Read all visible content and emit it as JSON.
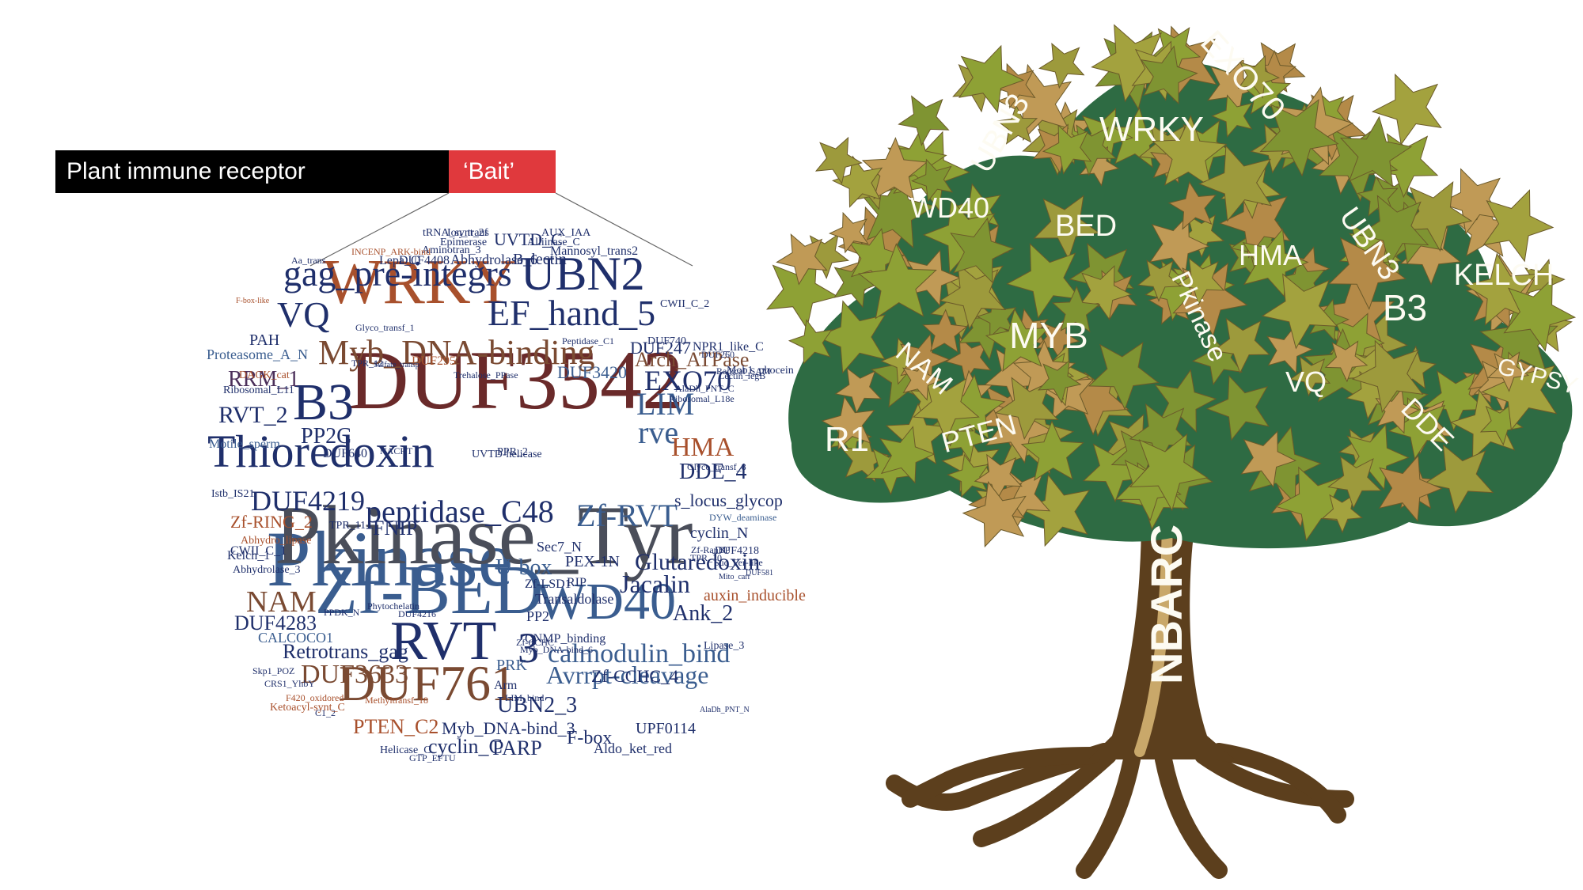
{
  "header": {
    "receptor_label": "Plant immune receptor",
    "bait_label": "‘Bait’",
    "receptor_color": "#000000",
    "bait_color": "#e0393d"
  },
  "word_cloud": {
    "colors": {
      "navy": "#1f2f6b",
      "blue": "#3a5d8f",
      "brown": "#7a4a32",
      "orange": "#a8502c",
      "slate": "#4a4e5a",
      "purple": "#4b2f5a"
    },
    "words": [
      {
        "text": "Pkinase",
        "color": "#3a5d8f"
      },
      {
        "text": "Pkinase_Tyr",
        "color": "#4a4e5a"
      },
      {
        "text": "DUF3542",
        "color": "#6a2a2a"
      },
      {
        "text": "WRKY",
        "color": "#a8502c"
      },
      {
        "text": "Zf-BED",
        "color": "#3a5d8f"
      },
      {
        "text": "Thioredoxin",
        "color": "#1f2f6b"
      },
      {
        "text": "DUF761",
        "color": "#7a4a32"
      },
      {
        "text": "UBN2",
        "color": "#1f2f6b"
      },
      {
        "text": "WD40",
        "color": "#3a5d8f"
      },
      {
        "text": "RVT",
        "color": "#1f2f6b"
      },
      {
        "text": "gag_pre-integrs",
        "color": "#1f2f6b"
      },
      {
        "text": "Myb_DNA-binding",
        "color": "#7a4a32"
      },
      {
        "text": "EF_hand_5",
        "color": "#1f2f6b"
      },
      {
        "text": "VQ",
        "color": "#1f2f6b"
      },
      {
        "text": "B3",
        "color": "#1f2f6b"
      },
      {
        "text": "peptidase_C48",
        "color": "#1f2f6b"
      },
      {
        "text": "Zf-RVT",
        "color": "#3a5d8f"
      },
      {
        "text": "rve",
        "color": "#3a5d8f"
      },
      {
        "text": "LIM",
        "color": "#3a5d8f"
      },
      {
        "text": "EXO70",
        "color": "#1f2f6b"
      },
      {
        "text": "HMA",
        "color": "#a8502c"
      },
      {
        "text": "DDE_4",
        "color": "#1f2f6b"
      },
      {
        "text": "calmodulin_bind",
        "color": "#3a5d8f"
      },
      {
        "text": "Avrrpt-cleavage",
        "color": "#3a5d8f"
      },
      {
        "text": "Glutaredoxin",
        "color": "#1f2f6b"
      },
      {
        "text": "Jacalin",
        "color": "#1f2f6b"
      },
      {
        "text": "NAM",
        "color": "#7a4a32"
      },
      {
        "text": "Ank_2",
        "color": "#1f2f6b"
      },
      {
        "text": "RRM_1",
        "color": "#4b2f5a"
      },
      {
        "text": "RVT_2",
        "color": "#1f2f6b"
      },
      {
        "text": "DUF4219",
        "color": "#1f2f6b"
      },
      {
        "text": "3",
        "color": "#1f2f6b"
      },
      {
        "text": "UBN2_3",
        "color": "#1f2f6b"
      },
      {
        "text": "Zf-CCHC_4",
        "color": "#1f2f6b"
      },
      {
        "text": "DUF3633",
        "color": "#7a4a32"
      },
      {
        "text": "DUF4283",
        "color": "#1f2f6b"
      },
      {
        "text": "Retrotrans_gag",
        "color": "#1f2f6b"
      },
      {
        "text": "PTEN_C2",
        "color": "#a8502c"
      },
      {
        "text": "Myb_DNA-bind_3",
        "color": "#1f2f6b"
      },
      {
        "text": "F-box",
        "color": "#1f2f6b"
      },
      {
        "text": "cyclin_C",
        "color": "#1f2f6b"
      },
      {
        "text": "PARP",
        "color": "#1f2f6b"
      },
      {
        "text": "U-box",
        "color": "#3a5d8f"
      },
      {
        "text": "FNIP",
        "color": "#1f2f6b"
      },
      {
        "text": "PP2C",
        "color": "#1f2f6b"
      },
      {
        "text": "DUF247",
        "color": "#1f2f6b"
      },
      {
        "text": "Arch_ATPase",
        "color": "#7a4a32"
      },
      {
        "text": "s_locus_glycop",
        "color": "#1f2f6b"
      },
      {
        "text": "Zf-RING_2",
        "color": "#a8502c"
      },
      {
        "text": "Kelch_1",
        "color": "#1f2f6b"
      },
      {
        "text": "cyclin_N",
        "color": "#1f2f6b"
      },
      {
        "text": "Abhydrolase_6",
        "color": "#1f2f6b"
      },
      {
        "text": "B_lectin",
        "color": "#1f2f6b"
      },
      {
        "text": "UVTD_C",
        "color": "#1f2f6b"
      },
      {
        "text": "PAH",
        "color": "#1f2f6b"
      },
      {
        "text": "Proteasome_A_N",
        "color": "#3a5d8f"
      },
      {
        "text": "Motile_sperm",
        "color": "#3a5d8f"
      },
      {
        "text": "DUF640",
        "color": "#1f2f6b"
      },
      {
        "text": "PRK",
        "color": "#3a5d8f"
      },
      {
        "text": "Arm",
        "color": "#1f2f6b"
      },
      {
        "text": "PP2",
        "color": "#1f2f6b"
      },
      {
        "text": "Transaldolase",
        "color": "#1f2f6b"
      },
      {
        "text": "UPF0114",
        "color": "#1f2f6b"
      },
      {
        "text": "Aldo_ket_red",
        "color": "#1f2f6b"
      },
      {
        "text": "CALCOCO1",
        "color": "#3a5d8f"
      },
      {
        "text": "DUF3420",
        "color": "#3a5d8f"
      },
      {
        "text": "Trehalose_PPase",
        "color": "#1f2f6b"
      },
      {
        "text": "DUF295",
        "color": "#a8502c"
      },
      {
        "text": "DAGK_cat",
        "color": "#a8502c"
      },
      {
        "text": "Mob1_phocein",
        "color": "#1f2f6b"
      },
      {
        "text": "NPR1_like_C",
        "color": "#1f2f6b"
      },
      {
        "text": "Lipase_3",
        "color": "#1f2f6b"
      },
      {
        "text": "auxin_inducible",
        "color": "#a8502c"
      },
      {
        "text": "DUF4218",
        "color": "#1f2f6b"
      },
      {
        "text": "Abhydro_lipase",
        "color": "#a8502c"
      },
      {
        "text": "CWII_C_1",
        "color": "#1f2f6b"
      },
      {
        "text": "TPR_11",
        "color": "#1f2f6b"
      },
      {
        "text": "TPR_12",
        "color": "#1f2f6b"
      },
      {
        "text": "PPR_2",
        "color": "#1f2f6b"
      },
      {
        "text": "UVTD-helicase",
        "color": "#1f2f6b"
      },
      {
        "text": "Aa_trans",
        "color": "#1f2f6b"
      },
      {
        "text": "DUF4408",
        "color": "#1f2f6b"
      },
      {
        "text": "Lepa_C",
        "color": "#1f2f6b"
      },
      {
        "text": "Ion_trans",
        "color": "#1f2f6b"
      },
      {
        "text": "AUX_IAA",
        "color": "#1f2f6b"
      },
      {
        "text": "Alliinase_C",
        "color": "#1f2f6b"
      },
      {
        "text": "Mannosyl_trans2",
        "color": "#1f2f6b"
      },
      {
        "text": "CWII_C_2",
        "color": "#1f2f6b"
      },
      {
        "text": "tRNA_synt_2f",
        "color": "#1f2f6b"
      },
      {
        "text": "Epimerase",
        "color": "#1f2f6b"
      },
      {
        "text": "Aminotran_3",
        "color": "#1f2f6b"
      },
      {
        "text": "Abhydrolase_3",
        "color": "#1f2f6b"
      },
      {
        "text": "CNMP_binding",
        "color": "#1f2f6b"
      },
      {
        "text": "Zf-CCHC",
        "color": "#1f2f6b"
      },
      {
        "text": "Zf-LSD1",
        "color": "#1f2f6b"
      },
      {
        "text": "PEX-1N",
        "color": "#1f2f6b"
      },
      {
        "text": "RIP",
        "color": "#1f2f6b"
      },
      {
        "text": "Sec7_N",
        "color": "#1f2f6b"
      },
      {
        "text": "C1_2",
        "color": "#1f2f6b"
      },
      {
        "text": "F420_oxidored",
        "color": "#a8502c"
      },
      {
        "text": "Ketoacyl-synt_C",
        "color": "#a8502c"
      },
      {
        "text": "Methyltransf_18",
        "color": "#a8502c"
      },
      {
        "text": "Helicase_C",
        "color": "#1f2f6b"
      },
      {
        "text": "GTP_EFTU",
        "color": "#1f2f6b"
      },
      {
        "text": "Skp1_POZ",
        "color": "#1f2f6b"
      },
      {
        "text": "CRS1_YhbY",
        "color": "#1f2f6b"
      },
      {
        "text": "Myb_DNA-bind_6",
        "color": "#1f2f6b"
      },
      {
        "text": "DUF260",
        "color": "#1f2f6b"
      },
      {
        "text": "Radical_SAM",
        "color": "#1f2f6b"
      },
      {
        "text": "Lectin_legB",
        "color": "#1f2f6b"
      },
      {
        "text": "AlaDh_PNT_C",
        "color": "#1f2f6b"
      },
      {
        "text": "Ribosomal_L18e",
        "color": "#1f2f6b"
      },
      {
        "text": "Ribosomal_L11",
        "color": "#1f2f6b"
      },
      {
        "text": "DYW_deaminase",
        "color": "#3a5d8f"
      },
      {
        "text": "Glyco_transf_8",
        "color": "#1f2f6b"
      },
      {
        "text": "DUF4216",
        "color": "#1f2f6b"
      },
      {
        "text": "Phytochelatin",
        "color": "#1f2f6b"
      },
      {
        "text": "PPDK_N",
        "color": "#1f2f6b"
      },
      {
        "text": "Sulfate_transp",
        "color": "#1f2f6b"
      },
      {
        "text": "NACHT",
        "color": "#1f2f6b"
      },
      {
        "text": "Zf-RanBP",
        "color": "#1f2f6b"
      },
      {
        "text": "TPR_10",
        "color": "#1f2f6b"
      },
      {
        "text": "Suc_Fer-like",
        "color": "#1f2f6b"
      },
      {
        "text": "DUF581",
        "color": "#1f2f6b"
      },
      {
        "text": "Mito_carr",
        "color": "#1f2f6b"
      },
      {
        "text": "LIM_bind",
        "color": "#1f2f6b"
      },
      {
        "text": "AlaDh_PNT_N",
        "color": "#1f2f6b"
      },
      {
        "text": "DUF740",
        "color": "#1f2f6b"
      },
      {
        "text": "Peptidase_C1",
        "color": "#1f2f6b"
      },
      {
        "text": "Istb_IS21",
        "color": "#1f2f6b"
      },
      {
        "text": "F-box-like",
        "color": "#a8502c"
      },
      {
        "text": "Glyco_transf_1",
        "color": "#1f2f6b"
      },
      {
        "text": "INCENP_ARK-bind",
        "color": "#a8502c"
      },
      {
        "text": "RNA_pol_L",
        "color": "#a8502c"
      }
    ]
  },
  "tree": {
    "colors": {
      "trunk": "#5c3f1d",
      "trunk_light": "#c9a86a",
      "leaf_green": "#8ea135",
      "leaf_olive": "#9d9a3c",
      "leaf_brown": "#b48a48",
      "leaf_dark": "#2e6b43"
    },
    "trunk_label": "NBARC",
    "leaf_labels": [
      "EXO70",
      "UBN3",
      "WRKY",
      "WD40",
      "BED",
      "UBN3",
      "HMA",
      "KELCH",
      "MYB",
      "B3",
      "Pkinase",
      "NAM",
      "VQ",
      "GYPSY",
      "R1",
      "PTEN",
      "DDE"
    ]
  }
}
